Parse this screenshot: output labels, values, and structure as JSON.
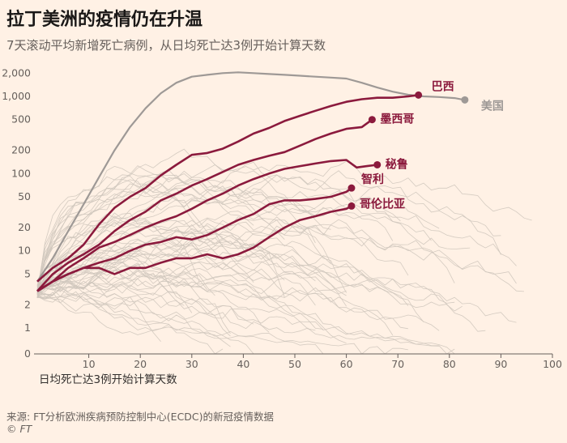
{
  "header": {
    "title": "拉丁美洲的疫情仍在升温",
    "subtitle": "7天滚动平均新增死亡病例，从日均死亡达3例开始计算天数"
  },
  "footer": {
    "source": "来源: FT分析欧洲疾病预防控制中心(ECDC)的新冠疫情数据",
    "copyright": "© FT"
  },
  "chart_data": {
    "type": "line",
    "title": "拉丁美洲的疫情仍在升温",
    "subtitle": "7天滚动平均新增死亡病例，从日均死亡达3例开始计算天数",
    "xlabel": "日均死亡达3例开始计算天数",
    "ylabel": "",
    "xlim": [
      0,
      100
    ],
    "xticks": [
      10,
      20,
      30,
      40,
      50,
      60,
      70,
      80,
      90,
      100
    ],
    "ylim": [
      0,
      2500
    ],
    "yscale": "log (pseudo, zero at baseline)",
    "yticks": [
      0,
      1,
      2,
      5,
      10,
      20,
      50,
      100,
      200,
      500,
      1000,
      2000
    ],
    "ytick_labels": [
      "0",
      "1",
      "2",
      "5",
      "10",
      "20",
      "50",
      "100",
      "200",
      "500",
      "1,000",
      "2,000"
    ],
    "grid": false,
    "colors": {
      "highlight": "#8b1a3d",
      "usa": "#9e9996",
      "background_lines": "#cfc6bd",
      "background": "#fff1e5"
    },
    "series": [
      {
        "name": "巴西",
        "highlight": true,
        "x": [
          0,
          3,
          6,
          9,
          12,
          15,
          18,
          21,
          24,
          27,
          30,
          33,
          36,
          39,
          42,
          45,
          48,
          51,
          54,
          57,
          60,
          63,
          66,
          69,
          72,
          74
        ],
        "y": [
          4,
          6,
          8,
          12,
          22,
          36,
          50,
          65,
          95,
          130,
          175,
          185,
          210,
          260,
          330,
          390,
          480,
          560,
          650,
          750,
          850,
          920,
          960,
          960,
          1000,
          1040
        ]
      },
      {
        "name": "墨西哥",
        "highlight": true,
        "x": [
          0,
          3,
          6,
          9,
          12,
          15,
          18,
          21,
          24,
          27,
          30,
          33,
          36,
          39,
          42,
          45,
          48,
          51,
          54,
          57,
          60,
          63,
          65
        ],
        "y": [
          3,
          5,
          7,
          9,
          12,
          18,
          25,
          32,
          45,
          55,
          70,
          85,
          105,
          130,
          150,
          170,
          190,
          230,
          280,
          330,
          380,
          400,
          500
        ]
      },
      {
        "name": "秘鲁",
        "highlight": true,
        "x": [
          0,
          3,
          6,
          9,
          12,
          15,
          18,
          21,
          24,
          27,
          30,
          33,
          36,
          39,
          42,
          45,
          48,
          51,
          54,
          57,
          60,
          62,
          64,
          66
        ],
        "y": [
          3,
          4,
          6,
          8,
          11,
          13,
          16,
          20,
          24,
          28,
          35,
          45,
          55,
          70,
          85,
          100,
          115,
          125,
          135,
          145,
          150,
          120,
          125,
          130
        ]
      },
      {
        "name": "智利",
        "highlight": true,
        "x": [
          0,
          3,
          6,
          9,
          12,
          15,
          18,
          21,
          24,
          27,
          30,
          33,
          36,
          39,
          42,
          45,
          48,
          51,
          54,
          57,
          60,
          61
        ],
        "y": [
          3,
          4,
          5,
          6,
          7,
          8,
          10,
          12,
          13,
          15,
          14,
          16,
          20,
          25,
          30,
          40,
          45,
          45,
          47,
          50,
          58,
          65
        ]
      },
      {
        "name": "哥伦比亚",
        "highlight": true,
        "x": [
          0,
          3,
          6,
          9,
          12,
          15,
          18,
          21,
          24,
          27,
          30,
          33,
          36,
          39,
          42,
          45,
          48,
          51,
          54,
          57,
          60,
          61
        ],
        "y": [
          3,
          4,
          5,
          6,
          6,
          5,
          6,
          6,
          7,
          8,
          8,
          9,
          8,
          9,
          11,
          15,
          20,
          25,
          28,
          32,
          35,
          38
        ]
      },
      {
        "name": "美国",
        "highlight": false,
        "x": [
          0,
          3,
          6,
          9,
          12,
          15,
          18,
          21,
          24,
          27,
          30,
          33,
          36,
          39,
          42,
          45,
          48,
          51,
          54,
          57,
          60,
          63,
          66,
          69,
          72,
          75,
          78,
          81,
          83
        ],
        "y": [
          4,
          8,
          18,
          40,
          90,
          200,
          400,
          700,
          1100,
          1500,
          1800,
          1900,
          2000,
          2050,
          2000,
          1950,
          1900,
          1850,
          1800,
          1750,
          1700,
          1500,
          1300,
          1150,
          1050,
          1000,
          980,
          950,
          900
        ]
      }
    ]
  }
}
